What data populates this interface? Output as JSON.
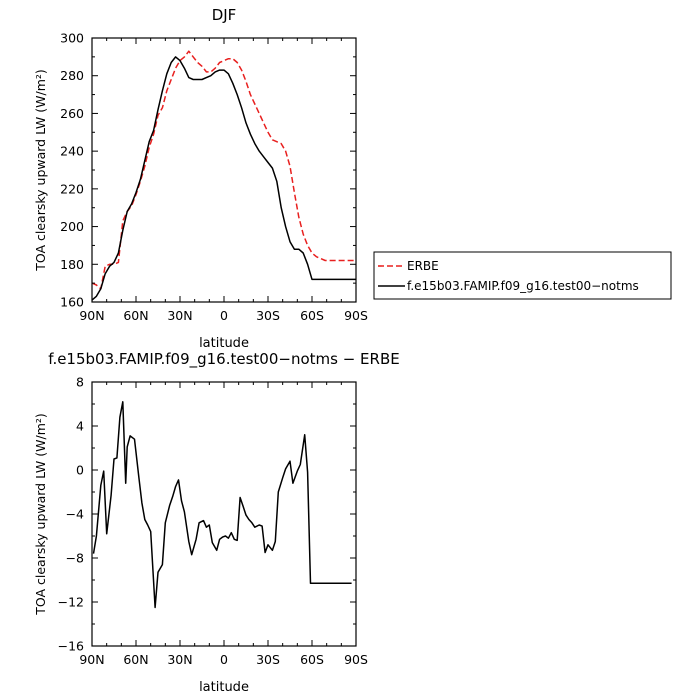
{
  "chart_data": [
    {
      "type": "line",
      "title": "DJF",
      "xlabel": "latitude",
      "ylabel": "TOA clearsky upward LW (W/m²)",
      "xlim": [
        90,
        -90
      ],
      "ylim": [
        160,
        300
      ],
      "x_ticks": [
        90,
        60,
        30,
        0,
        -30,
        -60,
        -90
      ],
      "x_tick_labels": [
        "90N",
        "60N",
        "30N",
        "0",
        "30S",
        "60S",
        "90S"
      ],
      "y_ticks": [
        160,
        180,
        200,
        220,
        240,
        260,
        280,
        300
      ],
      "y_tick_labels": [
        "160",
        "180",
        "200",
        "220",
        "240",
        "260",
        "280",
        "300"
      ],
      "legend": "right",
      "series": [
        {
          "name": "ERBE",
          "color": "#e8201f",
          "dash": "dashed",
          "x": [
            90,
            87,
            84,
            81,
            78,
            75,
            72,
            69,
            66,
            63,
            60,
            57,
            54,
            51,
            48,
            45,
            42,
            39,
            36,
            33,
            30,
            27,
            24,
            21,
            18,
            15,
            12,
            9,
            6,
            3,
            0,
            -3,
            -6,
            -9,
            -12,
            -15,
            -18,
            -21,
            -24,
            -27,
            -30,
            -33,
            -36,
            -39,
            -42,
            -45,
            -48,
            -51,
            -54,
            -57,
            -60,
            -63,
            -66,
            -69,
            -72,
            -75,
            -78,
            -81,
            -84,
            -87,
            -90
          ],
          "values": [
            170,
            169,
            167,
            179,
            180,
            180,
            181,
            203,
            208,
            211,
            217,
            224,
            232,
            242,
            249,
            259,
            263,
            272,
            278,
            284,
            288,
            290,
            293,
            290,
            287,
            285,
            282,
            282,
            284,
            287,
            288,
            289,
            289,
            287,
            283,
            277,
            270,
            265,
            260,
            255,
            250,
            246,
            245,
            244,
            240,
            232,
            218,
            205,
            196,
            190,
            186,
            184,
            183,
            182,
            182,
            182,
            182,
            182,
            182,
            182,
            182
          ]
        },
        {
          "name": "f.e15b03.FAMIP.f09_g16.test00−notms",
          "color": "#000000",
          "dash": "solid",
          "x": [
            90,
            87,
            84,
            81,
            78,
            75,
            72,
            69,
            66,
            63,
            60,
            57,
            54,
            51,
            48,
            45,
            42,
            39,
            36,
            33,
            30,
            27,
            24,
            21,
            18,
            15,
            12,
            9,
            6,
            3,
            0,
            -3,
            -6,
            -9,
            -12,
            -15,
            -18,
            -21,
            -24,
            -27,
            -30,
            -33,
            -36,
            -39,
            -42,
            -45,
            -48,
            -51,
            -54,
            -57,
            -60,
            -63,
            -66,
            -69,
            -72,
            -75,
            -78,
            -81,
            -84,
            -87,
            -90
          ],
          "values": [
            161,
            163,
            167,
            175,
            179,
            181,
            186,
            198,
            208,
            212,
            218,
            225,
            235,
            245,
            251,
            262,
            272,
            281,
            287,
            290,
            288,
            284,
            279,
            278,
            278,
            278,
            279,
            280,
            282,
            283,
            283,
            281,
            276,
            270,
            263,
            255,
            249,
            244,
            240,
            237,
            234,
            231,
            224,
            210,
            200,
            192,
            188,
            188,
            186,
            180,
            172,
            172,
            172,
            172,
            172,
            172,
            172,
            172,
            172,
            172,
            172
          ]
        }
      ]
    },
    {
      "type": "line",
      "title": "f.e15b03.FAMIP.f09_g16.test00−notms − ERBE",
      "xlabel": "latitude",
      "ylabel": "TOA clearsky upward LW (W/m²)",
      "xlim": [
        90,
        -90
      ],
      "ylim": [
        -16,
        8
      ],
      "x_ticks": [
        90,
        60,
        30,
        0,
        -30,
        -60,
        -90
      ],
      "x_tick_labels": [
        "90N",
        "60N",
        "30N",
        "0",
        "30S",
        "60S",
        "90S"
      ],
      "y_ticks": [
        -16,
        -12,
        -8,
        -4,
        0,
        4,
        8
      ],
      "y_tick_labels": [
        "−16",
        "−12",
        "−8",
        "−4",
        "0",
        "4",
        "8"
      ],
      "series": [
        {
          "color": "#000000",
          "x": [
            89,
            87,
            84,
            82,
            80,
            77,
            75,
            73,
            71,
            69,
            67,
            66,
            64,
            61,
            58,
            56,
            54,
            52,
            50,
            47,
            45,
            42,
            40,
            37,
            35,
            33,
            31,
            29,
            27,
            24,
            22,
            19,
            17,
            14,
            12,
            10,
            8,
            5,
            3,
            1,
            -1,
            -3,
            -5,
            -7,
            -9,
            -11,
            -13,
            -15,
            -17,
            -19,
            -21,
            -24,
            -26,
            -28,
            -30,
            -33,
            -35,
            -37,
            -40,
            -42,
            -45,
            -47,
            -50,
            -52,
            -55,
            -57,
            -59,
            -61,
            -63,
            -66,
            -68,
            -70,
            -72,
            -75,
            -77,
            -79,
            -81,
            -83,
            -85,
            -87
          ],
          "values": [
            -7.6,
            -6,
            -1.4,
            -0.1,
            -5.8,
            -2.3,
            1,
            1.1,
            4.8,
            6.2,
            -1.2,
            2.1,
            3.1,
            2.8,
            -0.7,
            -3,
            -4.5,
            -5,
            -5.6,
            -12.5,
            -9.3,
            -8.6,
            -4.8,
            -3.2,
            -2.4,
            -1.5,
            -0.9,
            -2.8,
            -3.8,
            -6.5,
            -7.7,
            -6.3,
            -4.8,
            -4.6,
            -5.2,
            -5,
            -6.6,
            -7.3,
            -6.3,
            -6.1,
            -6,
            -6.2,
            -5.7,
            -6.3,
            -6.4,
            -2.5,
            -3.3,
            -4.1,
            -4.5,
            -4.8,
            -5.2,
            -5,
            -5.1,
            -7.5,
            -6.8,
            -7.3,
            -6.5,
            -2,
            -0.7,
            0.1,
            0.8,
            -1.2,
            -0.1,
            0.5,
            3.2,
            -0.2,
            -10.3,
            -10.3,
            -10.3,
            -10.3,
            -10.3,
            -10.3,
            -10.3,
            -10.3,
            -10.3,
            -10.3,
            -10.3,
            -10.3,
            -10.3,
            -10.3
          ]
        }
      ]
    }
  ]
}
